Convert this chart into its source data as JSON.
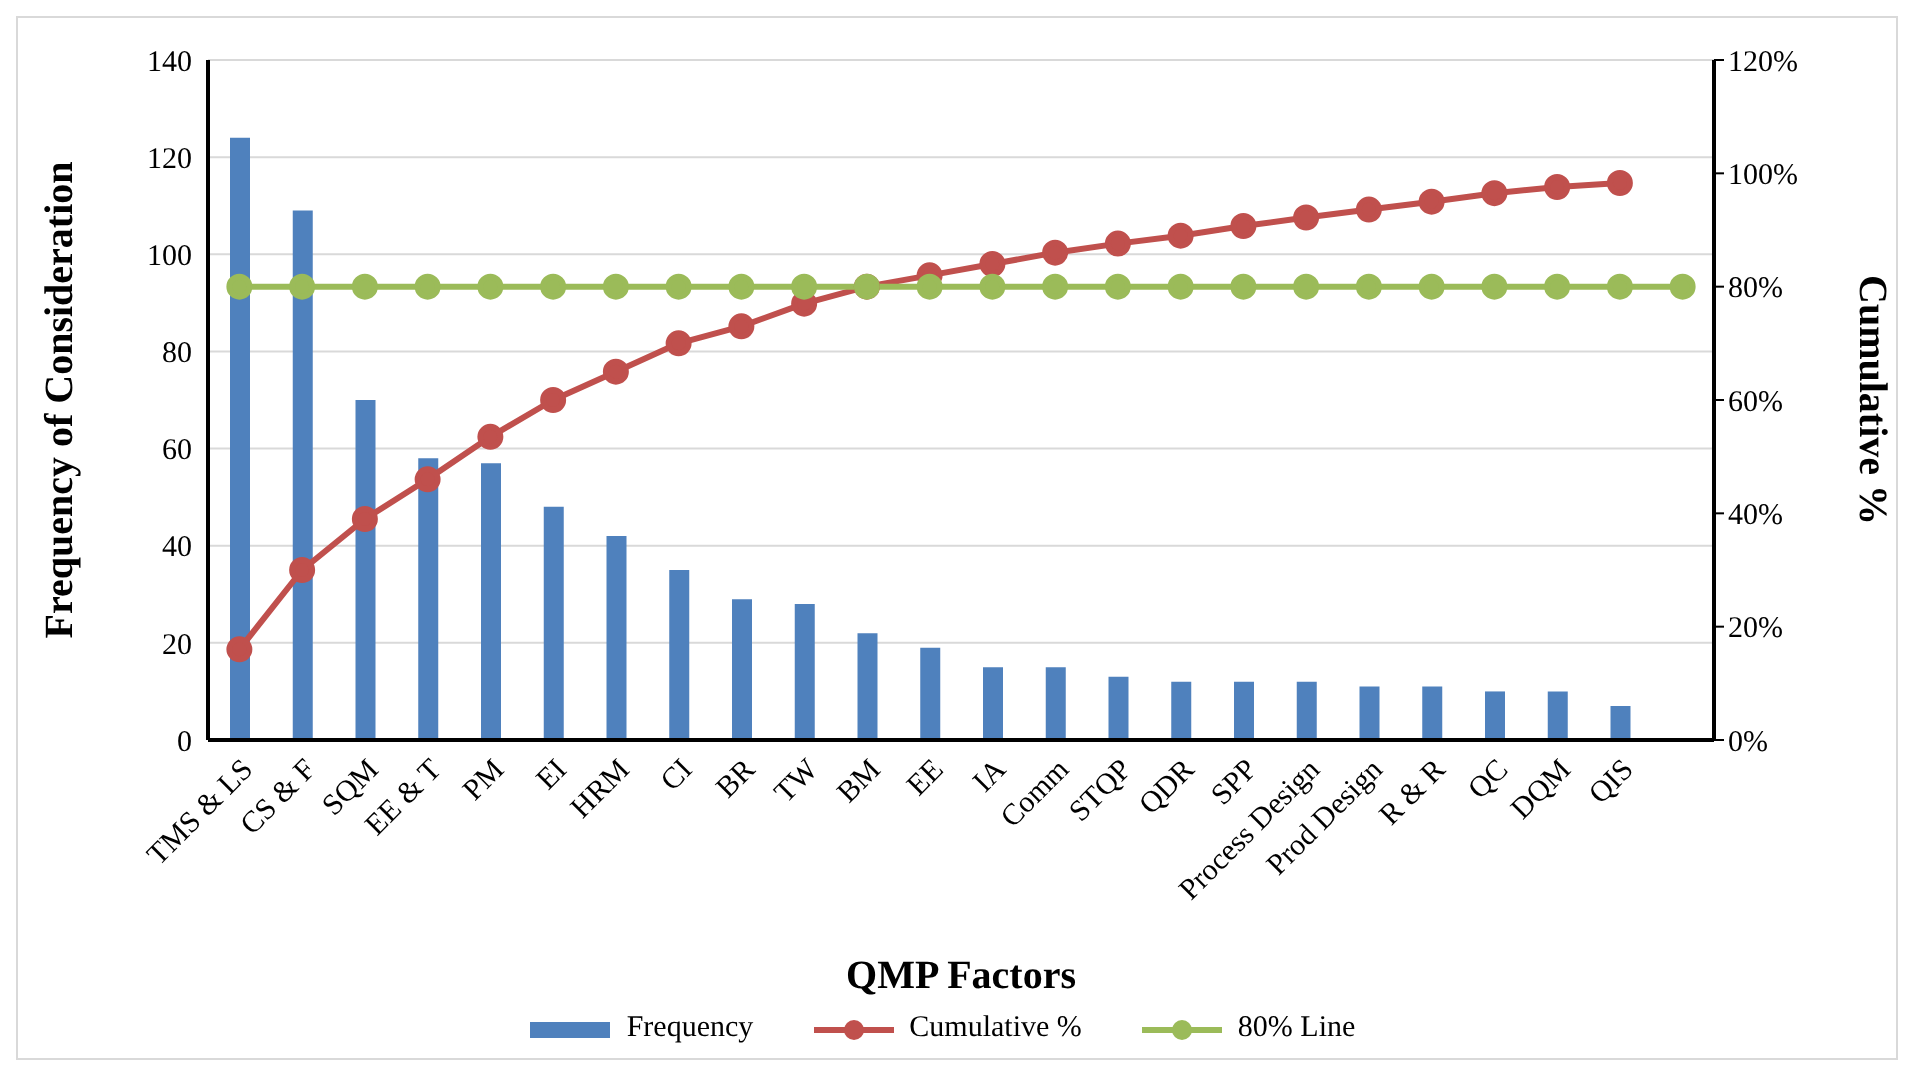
{
  "chart_data": {
    "type": "bar",
    "xlabel": "QMP Factors",
    "ylabel": "Frequency of Consideration",
    "y2label": "Cumulative %",
    "categories": [
      "TMS & LS",
      "CS & F",
      "SQM",
      "EE & T",
      "PM",
      "EI",
      "HRM",
      "CI",
      "BR",
      "TW",
      "BM",
      "EE",
      "IA",
      "Comm",
      "STQP",
      "QDR",
      "SPP",
      "Process Design",
      "Prod Design",
      "R & R",
      "QC",
      "DQM",
      "QIS",
      null
    ],
    "series": [
      {
        "name": "Frequency",
        "color": "#4f81bd",
        "values": [
          124,
          109,
          70,
          58,
          57,
          48,
          42,
          35,
          29,
          28,
          22,
          19,
          15,
          15,
          13,
          12,
          12,
          12,
          11,
          11,
          10,
          10,
          7,
          null
        ]
      },
      {
        "name": "Cumulative %",
        "type": "line",
        "axis": "y2",
        "color": "#c0504d",
        "values": [
          16,
          30,
          39,
          46,
          53.5,
          60,
          65,
          70,
          73,
          77,
          80,
          82,
          84,
          86,
          87.6,
          89,
          90.7,
          92.2,
          93.6,
          95,
          96.5,
          97.6,
          98.3,
          null
        ]
      },
      {
        "name": "80% Line",
        "type": "line",
        "axis": "y2",
        "color": "#9bbb59",
        "values": [
          80,
          80,
          80,
          80,
          80,
          80,
          80,
          80,
          80,
          80,
          80,
          80,
          80,
          80,
          80,
          80,
          80,
          80,
          80,
          80,
          80,
          80,
          80,
          80
        ]
      }
    ],
    "ylim": [
      0,
      140
    ],
    "yticks": [
      0,
      20,
      40,
      60,
      80,
      100,
      120,
      140
    ],
    "y2lim": [
      0,
      120
    ],
    "y2ticks": [
      {
        "value": 0,
        "label": "0%"
      },
      {
        "value": 20,
        "label": "20%"
      },
      {
        "value": 40,
        "label": "40%"
      },
      {
        "value": 60,
        "label": "60%"
      },
      {
        "value": 80,
        "label": "80%"
      },
      {
        "value": 100,
        "label": "100%"
      },
      {
        "value": 120,
        "label": "120%"
      }
    ],
    "grid": "y",
    "legend": "bottom",
    "marker": "circle"
  }
}
